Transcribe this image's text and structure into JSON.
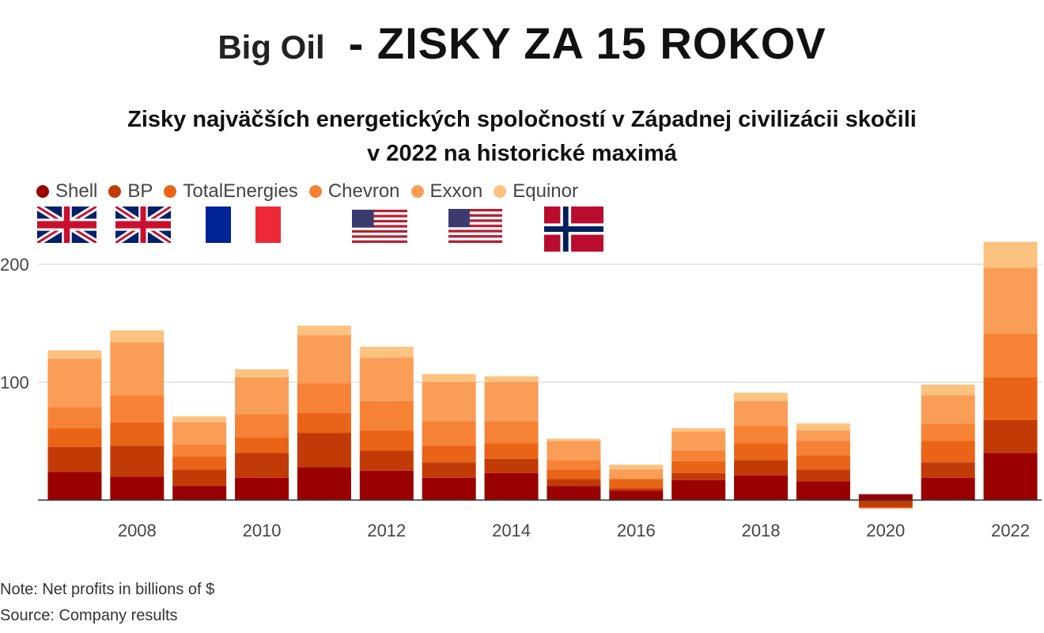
{
  "title": {
    "left": "Big Oil",
    "main": "- ZISKY ZA 15 ROKOV"
  },
  "subtitle": {
    "line1": "Zisky najväčších energetických spoločností v Západnej civilizácii skočili",
    "line2": "v 2022 na historické maximá"
  },
  "colors": {
    "Shell": "#9a0000",
    "BP": "#c23a06",
    "TotalEnergies": "#ea6417",
    "Chevron": "#f68235",
    "Exxon": "#fa9d57",
    "Equinor": "#fcc27f",
    "grid": "#cfcfcf",
    "baseline": "#333333"
  },
  "legend": [
    {
      "label": "Shell",
      "color": "#9a0000"
    },
    {
      "label": "BP",
      "color": "#c23a06"
    },
    {
      "label": "TotalEnergies",
      "color": "#ea6417"
    },
    {
      "label": "Chevron",
      "color": "#f68235"
    },
    {
      "label": "Exxon",
      "color": "#fa9d57"
    },
    {
      "label": "Equinor",
      "color": "#fcc27f"
    }
  ],
  "flags": [
    "uk-flag",
    "uk-flag",
    "france-flag",
    "usa-flag",
    "usa-flag",
    "norway-flag"
  ],
  "chart_data": {
    "type": "bar",
    "stacked": true,
    "x": [
      2007,
      2008,
      2009,
      2010,
      2011,
      2012,
      2013,
      2014,
      2015,
      2016,
      2017,
      2018,
      2019,
      2020,
      2021,
      2022
    ],
    "tick_labels": [
      "2008",
      "2010",
      "2012",
      "2014",
      "2016",
      "2018",
      "2020",
      "2022"
    ],
    "ylim": [
      -10,
      220
    ],
    "yticks": [
      100,
      200
    ],
    "grid": true,
    "legend_position": "top-left",
    "series": [
      {
        "name": "Shell",
        "values": [
          24,
          20,
          12,
          19,
          28,
          25,
          19,
          23,
          12,
          8,
          17,
          21,
          16,
          5,
          19,
          40
        ]
      },
      {
        "name": "BP",
        "values": [
          21,
          26,
          14,
          21,
          29,
          17,
          13,
          12,
          6,
          2,
          6,
          13,
          10,
          -6,
          13,
          28
        ]
      },
      {
        "name": "TotalEnergies",
        "values": [
          16,
          20,
          11,
          13,
          17,
          17,
          14,
          13,
          8,
          8,
          10,
          14,
          12,
          -1,
          18,
          36
        ]
      },
      {
        "name": "Chevron",
        "values": [
          18,
          23,
          10,
          20,
          25,
          25,
          21,
          19,
          8,
          0,
          9,
          15,
          12,
          0,
          15,
          37
        ]
      },
      {
        "name": "Exxon",
        "values": [
          41,
          45,
          19,
          31,
          41,
          37,
          33,
          33,
          16,
          8,
          16,
          21,
          9,
          0,
          24,
          56
        ]
      },
      {
        "name": "Equinor",
        "values": [
          7,
          10,
          5,
          7,
          8,
          9,
          7,
          5,
          2,
          4,
          3,
          7,
          6,
          0,
          9,
          22
        ]
      }
    ]
  },
  "notes": {
    "note": "Note: Net profits in billions of $",
    "source": "Source: Company results"
  }
}
